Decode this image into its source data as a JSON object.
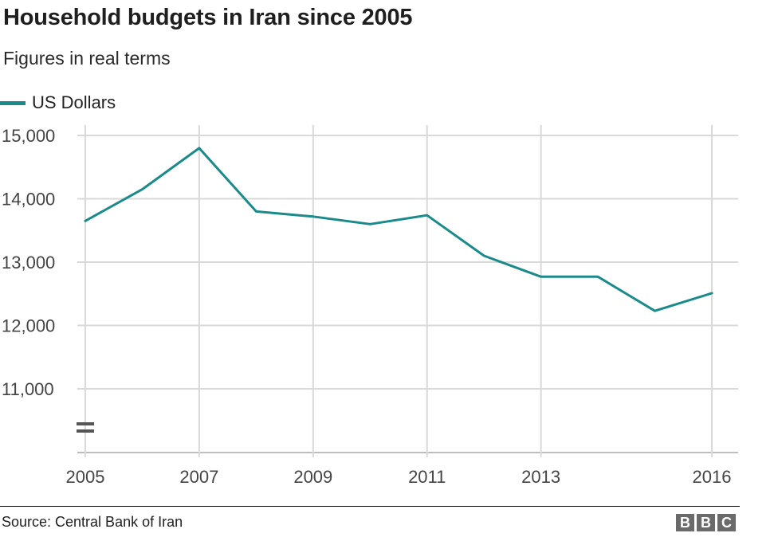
{
  "chart_data": {
    "type": "line",
    "title": "Household budgets in Iran since 2005",
    "subtitle": "Figures in real terms",
    "x": [
      2005,
      2006,
      2007,
      2008,
      2009,
      2010,
      2011,
      2012,
      2013,
      2014,
      2015,
      2016
    ],
    "x_ticks": [
      "2005",
      "2007",
      "2009",
      "2011",
      "2013",
      "2016"
    ],
    "y_ticks": [
      "15,000",
      "14,000",
      "13,000",
      "12,000",
      "11,000"
    ],
    "ylim": [
      10000,
      15000
    ],
    "axis_break": true,
    "grid": true,
    "legend_position": "top-left",
    "series": [
      {
        "name": "US Dollars",
        "color": "#1a8a8a",
        "values": [
          13650,
          14150,
          14800,
          13800,
          13720,
          13600,
          13740,
          13100,
          12770,
          12770,
          12230,
          12510
        ]
      }
    ]
  },
  "footer": {
    "source": "Source: Central Bank of Iran",
    "logo_letters": [
      "B",
      "B",
      "C"
    ]
  }
}
